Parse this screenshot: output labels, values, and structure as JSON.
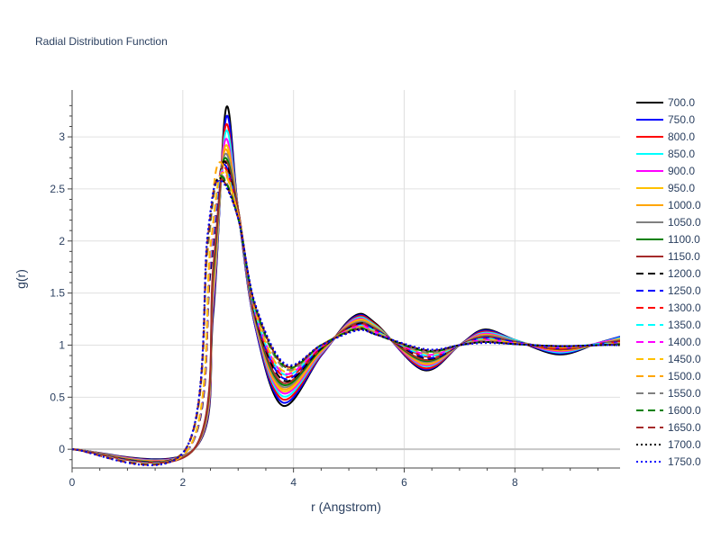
{
  "chart_data": {
    "type": "line",
    "title": "Radial Distribution Function",
    "xlabel": "r (Angstrom)",
    "ylabel": "g(r)",
    "xlim": [
      0,
      9.9
    ],
    "ylim": [
      -0.18,
      3.45
    ],
    "x_ticks": [
      "0",
      "2",
      "4",
      "6",
      "8"
    ],
    "y_ticks": [
      "0",
      "0.5",
      "1",
      "1.5",
      "2",
      "2.5",
      "3"
    ],
    "grid": true,
    "legend_position": "right",
    "series": [
      {
        "name": "700.0",
        "color": "#000000",
        "dash": "solid",
        "x": [
          0,
          2.2,
          2.55,
          2.78,
          3.0,
          3.3,
          3.8,
          4.5,
          5.1,
          5.5,
          6.35,
          7.0,
          7.45,
          8.0,
          8.8,
          9.5,
          9.9
        ],
        "y": [
          0,
          0,
          1.3,
          3.27,
          2.3,
          1.2,
          0.42,
          0.9,
          1.28,
          1.2,
          0.76,
          1.0,
          1.15,
          1.05,
          0.91,
          1.02,
          1.08
        ]
      },
      {
        "name": "750.0",
        "color": "#0000ff",
        "dash": "solid",
        "x": [
          0,
          2.2,
          2.55,
          2.78,
          3.0,
          3.3,
          3.8,
          4.5,
          5.1,
          5.5,
          6.35,
          7.0,
          7.45,
          8.0,
          8.8,
          9.5,
          9.9
        ],
        "y": [
          0,
          0,
          1.35,
          3.18,
          2.3,
          1.2,
          0.45,
          0.9,
          1.27,
          1.19,
          0.77,
          1.0,
          1.14,
          1.05,
          0.92,
          1.02,
          1.08
        ]
      },
      {
        "name": "800.0",
        "color": "#ff0000",
        "dash": "solid",
        "x": [
          0,
          2.2,
          2.55,
          2.77,
          3.0,
          3.3,
          3.8,
          4.5,
          5.1,
          5.5,
          6.35,
          7.0,
          7.45,
          8.0,
          8.8,
          9.5,
          9.9
        ],
        "y": [
          0,
          0,
          1.4,
          3.1,
          2.3,
          1.22,
          0.48,
          0.91,
          1.26,
          1.19,
          0.78,
          1.0,
          1.13,
          1.05,
          0.93,
          1.02,
          1.07
        ]
      },
      {
        "name": "850.0",
        "color": "#00ffff",
        "dash": "solid",
        "x": [
          0,
          2.2,
          2.55,
          2.77,
          3.0,
          3.3,
          3.8,
          4.5,
          5.1,
          5.5,
          6.35,
          7.0,
          7.45,
          8.0,
          8.8,
          9.5,
          9.9
        ],
        "y": [
          0,
          0,
          1.45,
          3.04,
          2.3,
          1.23,
          0.51,
          0.92,
          1.25,
          1.18,
          0.8,
          1.0,
          1.12,
          1.05,
          0.93,
          1.02,
          1.07
        ]
      },
      {
        "name": "900.0",
        "color": "#ff00ff",
        "dash": "solid",
        "x": [
          0,
          2.2,
          2.55,
          2.76,
          3.0,
          3.3,
          3.8,
          4.5,
          5.1,
          5.5,
          6.35,
          7.0,
          7.45,
          8.0,
          8.8,
          9.5,
          9.9
        ],
        "y": [
          0,
          0,
          1.5,
          2.96,
          2.3,
          1.24,
          0.54,
          0.93,
          1.24,
          1.17,
          0.81,
          1.0,
          1.11,
          1.04,
          0.94,
          1.02,
          1.06
        ]
      },
      {
        "name": "950.0",
        "color": "#ffc000",
        "dash": "solid",
        "x": [
          0,
          2.2,
          2.55,
          2.76,
          3.0,
          3.3,
          3.8,
          4.5,
          5.1,
          5.5,
          6.35,
          7.0,
          7.45,
          8.0,
          8.8,
          9.5,
          9.9
        ],
        "y": [
          0,
          0,
          1.55,
          2.9,
          2.3,
          1.25,
          0.56,
          0.94,
          1.23,
          1.17,
          0.82,
          1.0,
          1.1,
          1.04,
          0.95,
          1.01,
          1.06
        ]
      },
      {
        "name": "1000.0",
        "color": "#ffa500",
        "dash": "solid",
        "x": [
          0,
          2.2,
          2.55,
          2.75,
          3.0,
          3.3,
          3.8,
          4.5,
          5.1,
          5.5,
          6.35,
          7.0,
          7.45,
          8.0,
          8.8,
          9.5,
          9.9
        ],
        "y": [
          0,
          0,
          1.6,
          2.86,
          2.3,
          1.26,
          0.58,
          0.95,
          1.22,
          1.16,
          0.83,
          1.0,
          1.1,
          1.04,
          0.95,
          1.01,
          1.05
        ]
      },
      {
        "name": "1050.0",
        "color": "#808080",
        "dash": "solid",
        "x": [
          0,
          2.2,
          2.55,
          2.75,
          3.0,
          3.3,
          3.8,
          4.5,
          5.1,
          5.5,
          6.35,
          7.0,
          7.45,
          8.0,
          8.8,
          9.5,
          9.9
        ],
        "y": [
          0,
          0,
          1.65,
          2.82,
          2.3,
          1.27,
          0.6,
          0.96,
          1.21,
          1.16,
          0.84,
          1.0,
          1.09,
          1.04,
          0.96,
          1.01,
          1.05
        ]
      },
      {
        "name": "1100.0",
        "color": "#008000",
        "dash": "solid",
        "x": [
          0,
          2.2,
          2.55,
          2.74,
          3.0,
          3.3,
          3.8,
          4.5,
          5.1,
          5.5,
          6.35,
          7.0,
          7.45,
          8.0,
          8.8,
          9.5,
          9.9
        ],
        "y": [
          0,
          0,
          1.7,
          2.78,
          2.3,
          1.28,
          0.62,
          0.96,
          1.2,
          1.15,
          0.85,
          1.0,
          1.08,
          1.03,
          0.96,
          1.01,
          1.04
        ]
      },
      {
        "name": "1150.0",
        "color": "#a52a2a",
        "dash": "solid",
        "x": [
          0,
          2.2,
          2.55,
          2.74,
          3.0,
          3.3,
          3.8,
          4.5,
          5.1,
          5.5,
          6.35,
          7.0,
          7.45,
          8.0,
          8.8,
          9.5,
          9.9
        ],
        "y": [
          0,
          0,
          1.75,
          2.75,
          2.3,
          1.29,
          0.64,
          0.97,
          1.2,
          1.15,
          0.86,
          1.0,
          1.08,
          1.03,
          0.96,
          1.01,
          1.04
        ]
      },
      {
        "name": "1200.0",
        "color": "#000000",
        "dash": "dash",
        "x": [
          0,
          2.1,
          2.5,
          2.72,
          3.0,
          3.3,
          3.82,
          4.5,
          5.15,
          5.5,
          6.4,
          7.0,
          7.45,
          8.0,
          8.8,
          9.5,
          9.9
        ],
        "y": [
          0,
          0,
          1.7,
          2.75,
          2.25,
          1.3,
          0.66,
          0.97,
          1.2,
          1.14,
          0.87,
          1.0,
          1.07,
          1.03,
          0.97,
          1.01,
          1.03
        ]
      },
      {
        "name": "1250.0",
        "color": "#0000ff",
        "dash": "dash",
        "x": [
          0,
          2.1,
          2.5,
          2.72,
          3.0,
          3.3,
          3.82,
          4.5,
          5.15,
          5.5,
          6.4,
          7.0,
          7.45,
          8.0,
          8.8,
          9.5,
          9.9
        ],
        "y": [
          0,
          0,
          1.75,
          2.72,
          2.25,
          1.31,
          0.68,
          0.98,
          1.19,
          1.14,
          0.88,
          1.0,
          1.07,
          1.03,
          0.97,
          1.01,
          1.03
        ]
      },
      {
        "name": "1300.0",
        "color": "#ff0000",
        "dash": "dash",
        "x": [
          0,
          2.1,
          2.5,
          2.71,
          3.0,
          3.3,
          3.82,
          4.5,
          5.15,
          5.5,
          6.4,
          7.0,
          7.45,
          8.0,
          8.8,
          9.5,
          9.9
        ],
        "y": [
          0,
          0,
          1.8,
          2.7,
          2.25,
          1.32,
          0.7,
          0.98,
          1.19,
          1.13,
          0.89,
          1.0,
          1.06,
          1.02,
          0.97,
          1.01,
          1.03
        ]
      },
      {
        "name": "1350.0",
        "color": "#00ffff",
        "dash": "dash",
        "x": [
          0,
          2.1,
          2.5,
          2.71,
          3.0,
          3.3,
          3.82,
          4.5,
          5.15,
          5.5,
          6.4,
          7.0,
          7.45,
          8.0,
          8.8,
          9.5,
          9.9
        ],
        "y": [
          0,
          0,
          1.85,
          2.68,
          2.25,
          1.33,
          0.72,
          0.99,
          1.18,
          1.13,
          0.9,
          1.0,
          1.06,
          1.02,
          0.98,
          1.01,
          1.02
        ]
      },
      {
        "name": "1400.0",
        "color": "#ff00ff",
        "dash": "dash",
        "x": [
          0,
          2.1,
          2.5,
          2.7,
          3.0,
          3.3,
          3.82,
          4.5,
          5.15,
          5.5,
          6.4,
          7.0,
          7.45,
          8.0,
          8.8,
          9.5,
          9.9
        ],
        "y": [
          0,
          0,
          1.9,
          2.66,
          2.25,
          1.34,
          0.73,
          0.99,
          1.18,
          1.12,
          0.91,
          1.0,
          1.05,
          1.02,
          0.98,
          1.0,
          1.02
        ]
      },
      {
        "name": "1450.0",
        "color": "#ffc000",
        "dash": "dash",
        "x": [
          0,
          2.1,
          2.5,
          2.7,
          3.0,
          3.3,
          3.82,
          4.5,
          5.15,
          5.5,
          6.4,
          7.0,
          7.45,
          8.0,
          8.8,
          9.5,
          9.9
        ],
        "y": [
          0,
          0,
          1.95,
          2.65,
          2.25,
          1.35,
          0.75,
          1.0,
          1.17,
          1.12,
          0.92,
          1.0,
          1.05,
          1.02,
          0.98,
          1.0,
          1.02
        ]
      },
      {
        "name": "1500.0",
        "color": "#ffa500",
        "dash": "dash",
        "x": [
          0,
          2.05,
          2.45,
          2.65,
          3.0,
          3.3,
          3.85,
          4.5,
          5.15,
          5.5,
          6.4,
          7.0,
          7.45,
          8.0,
          8.8,
          9.5,
          9.9
        ],
        "y": [
          0,
          0,
          1.9,
          2.75,
          2.25,
          1.38,
          0.78,
          1.0,
          1.17,
          1.11,
          0.93,
          1.0,
          1.04,
          1.02,
          0.98,
          1.0,
          1.01
        ]
      },
      {
        "name": "1550.0",
        "color": "#808080",
        "dash": "dash",
        "x": [
          0,
          2.05,
          2.45,
          2.66,
          3.0,
          3.3,
          3.85,
          4.5,
          5.15,
          5.5,
          6.4,
          7.0,
          7.45,
          8.0,
          8.8,
          9.5,
          9.9
        ],
        "y": [
          0,
          0,
          1.95,
          2.63,
          2.22,
          1.37,
          0.77,
          1.0,
          1.16,
          1.11,
          0.93,
          1.0,
          1.04,
          1.01,
          0.99,
          1.0,
          1.01
        ]
      },
      {
        "name": "1600.0",
        "color": "#008000",
        "dash": "dash",
        "x": [
          0,
          2.05,
          2.45,
          2.66,
          3.0,
          3.3,
          3.85,
          4.5,
          5.15,
          5.5,
          6.4,
          7.0,
          7.45,
          8.0,
          8.8,
          9.5,
          9.9
        ],
        "y": [
          0,
          0,
          2.0,
          2.62,
          2.22,
          1.38,
          0.79,
          1.0,
          1.16,
          1.1,
          0.94,
          1.0,
          1.03,
          1.01,
          0.99,
          1.0,
          1.01
        ]
      },
      {
        "name": "1650.0",
        "color": "#a52a2a",
        "dash": "dash",
        "x": [
          0,
          2.05,
          2.45,
          2.65,
          3.0,
          3.3,
          3.85,
          4.5,
          5.15,
          5.5,
          6.4,
          7.0,
          7.45,
          8.0,
          8.8,
          9.5,
          9.9
        ],
        "y": [
          0,
          0,
          2.02,
          2.6,
          2.22,
          1.39,
          0.8,
          1.0,
          1.15,
          1.1,
          0.95,
          1.0,
          1.03,
          1.01,
          0.99,
          1.0,
          1.01
        ]
      },
      {
        "name": "1700.0",
        "color": "#000000",
        "dash": "dot",
        "x": [
          0,
          2.05,
          2.45,
          2.65,
          3.0,
          3.3,
          3.85,
          4.5,
          5.15,
          5.5,
          6.4,
          7.0,
          7.45,
          8.0,
          8.8,
          9.5,
          9.9
        ],
        "y": [
          0,
          0,
          2.05,
          2.6,
          2.22,
          1.4,
          0.81,
          1.0,
          1.15,
          1.1,
          0.95,
          1.0,
          1.03,
          1.01,
          0.99,
          1.0,
          1.0
        ]
      },
      {
        "name": "1750.0",
        "color": "#0000ff",
        "dash": "dot",
        "x": [
          0,
          2.05,
          2.45,
          2.65,
          3.0,
          3.3,
          3.85,
          4.5,
          5.15,
          5.5,
          6.4,
          7.0,
          7.45,
          8.0,
          8.8,
          9.5,
          9.9
        ],
        "y": [
          0,
          0,
          2.08,
          2.58,
          2.22,
          1.41,
          0.82,
          1.0,
          1.14,
          1.1,
          0.96,
          1.0,
          1.02,
          1.01,
          0.99,
          1.0,
          1.0
        ]
      }
    ]
  }
}
